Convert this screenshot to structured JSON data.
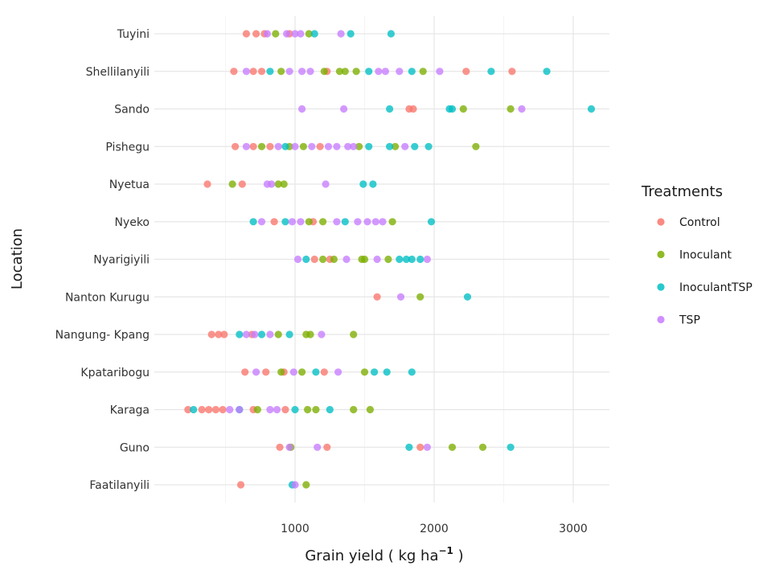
{
  "chart_data": {
    "type": "scatter",
    "xlabel": "Grain yield ( kg ha",
    "xlabel_sup": "−1",
    "xlabel_end": " )",
    "ylabel": "Location",
    "xlim": [
      200,
      3250
    ],
    "xticks": [
      1000,
      2000,
      3000
    ],
    "categories": [
      "Tuyini",
      "Shellilanyili",
      "Sando",
      "Pishegu",
      "Nyetua",
      "Nyeko",
      "Nyarigiyili",
      "Nanton Kurugu",
      "Nangung- Kpang",
      "Kpataribogu",
      "Karaga",
      "Guno",
      "Faatilanyili"
    ],
    "grid": true,
    "legend": {
      "title": "Treatments",
      "position": "right",
      "entries": [
        {
          "name": "Control",
          "color": "#F8766D"
        },
        {
          "name": "Inoculant",
          "color": "#7CAE00"
        },
        {
          "name": "InoculantTSP",
          "color": "#00BFC4"
        },
        {
          "name": "TSP",
          "color": "#C77CFF"
        }
      ]
    },
    "series": [
      {
        "name": "Control",
        "color": "#F8766D",
        "points": [
          [
            "Tuyini",
            650
          ],
          [
            "Tuyini",
            720
          ],
          [
            "Tuyini",
            780
          ],
          [
            "Tuyini",
            960
          ],
          [
            "Shellilanyili",
            560
          ],
          [
            "Shellilanyili",
            700
          ],
          [
            "Shellilanyili",
            760
          ],
          [
            "Shellilanyili",
            1230
          ],
          [
            "Shellilanyili",
            2230
          ],
          [
            "Shellilanyili",
            2560
          ],
          [
            "Sando",
            1820
          ],
          [
            "Sando",
            1850
          ],
          [
            "Pishegu",
            570
          ],
          [
            "Pishegu",
            700
          ],
          [
            "Pishegu",
            820
          ],
          [
            "Pishegu",
            1180
          ],
          [
            "Nyetua",
            370
          ],
          [
            "Nyetua",
            620
          ],
          [
            "Nyeko",
            850
          ],
          [
            "Nyeko",
            1130
          ],
          [
            "Nyarigiyili",
            1140
          ],
          [
            "Nyarigiyili",
            1250
          ],
          [
            "Nanton Kurugu",
            1590
          ],
          [
            "Nangung- Kpang",
            400
          ],
          [
            "Nangung- Kpang",
            450
          ],
          [
            "Nangung- Kpang",
            490
          ],
          [
            "Nangung- Kpang",
            690
          ],
          [
            "Kpataribogu",
            640
          ],
          [
            "Kpataribogu",
            790
          ],
          [
            "Kpataribogu",
            920
          ],
          [
            "Kpataribogu",
            1210
          ],
          [
            "Karaga",
            230
          ],
          [
            "Karaga",
            330
          ],
          [
            "Karaga",
            380
          ],
          [
            "Karaga",
            430
          ],
          [
            "Karaga",
            480
          ],
          [
            "Karaga",
            700
          ],
          [
            "Karaga",
            930
          ],
          [
            "Guno",
            890
          ],
          [
            "Guno",
            1230
          ],
          [
            "Guno",
            1900
          ],
          [
            "Faatilanyili",
            610
          ]
        ]
      },
      {
        "name": "Inoculant",
        "color": "#7CAE00",
        "points": [
          [
            "Tuyini",
            860
          ],
          [
            "Tuyini",
            1100
          ],
          [
            "Shellilanyili",
            900
          ],
          [
            "Shellilanyili",
            1210
          ],
          [
            "Shellilanyili",
            1320
          ],
          [
            "Shellilanyili",
            1360
          ],
          [
            "Shellilanyili",
            1440
          ],
          [
            "Shellilanyili",
            1920
          ],
          [
            "Sando",
            2210
          ],
          [
            "Sando",
            2550
          ],
          [
            "Pishegu",
            760
          ],
          [
            "Pishegu",
            960
          ],
          [
            "Pishegu",
            1060
          ],
          [
            "Pishegu",
            1460
          ],
          [
            "Pishegu",
            1720
          ],
          [
            "Pishegu",
            2300
          ],
          [
            "Nyetua",
            550
          ],
          [
            "Nyetua",
            880
          ],
          [
            "Nyetua",
            920
          ],
          [
            "Nyeko",
            1100
          ],
          [
            "Nyeko",
            1200
          ],
          [
            "Nyeko",
            1700
          ],
          [
            "Nyarigiyili",
            1200
          ],
          [
            "Nyarigiyili",
            1280
          ],
          [
            "Nyarigiyili",
            1480
          ],
          [
            "Nyarigiyili",
            1500
          ],
          [
            "Nyarigiyili",
            1670
          ],
          [
            "Nanton Kurugu",
            1900
          ],
          [
            "Nangung- Kpang",
            880
          ],
          [
            "Nangung- Kpang",
            1080
          ],
          [
            "Nangung- Kpang",
            1110
          ],
          [
            "Nangung- Kpang",
            1420
          ],
          [
            "Kpataribogu",
            900
          ],
          [
            "Kpataribogu",
            1050
          ],
          [
            "Kpataribogu",
            1500
          ],
          [
            "Karaga",
            730
          ],
          [
            "Karaga",
            1090
          ],
          [
            "Karaga",
            1150
          ],
          [
            "Karaga",
            1420
          ],
          [
            "Karaga",
            1540
          ],
          [
            "Guno",
            970
          ],
          [
            "Guno",
            2130
          ],
          [
            "Guno",
            2350
          ],
          [
            "Faatilanyili",
            1080
          ]
        ]
      },
      {
        "name": "InoculantTSP",
        "color": "#00BFC4",
        "points": [
          [
            "Tuyini",
            1140
          ],
          [
            "Tuyini",
            1400
          ],
          [
            "Tuyini",
            1690
          ],
          [
            "Shellilanyili",
            820
          ],
          [
            "Shellilanyili",
            1530
          ],
          [
            "Shellilanyili",
            1840
          ],
          [
            "Shellilanyili",
            2410
          ],
          [
            "Shellilanyili",
            2810
          ],
          [
            "Sando",
            1680
          ],
          [
            "Sando",
            2110
          ],
          [
            "Sando",
            2130
          ],
          [
            "Sando",
            3130
          ],
          [
            "Pishegu",
            930
          ],
          [
            "Pishegu",
            1530
          ],
          [
            "Pishegu",
            1680
          ],
          [
            "Pishegu",
            1860
          ],
          [
            "Pishegu",
            1960
          ],
          [
            "Nyetua",
            1490
          ],
          [
            "Nyetua",
            1560
          ],
          [
            "Nyeko",
            700
          ],
          [
            "Nyeko",
            930
          ],
          [
            "Nyeko",
            1360
          ],
          [
            "Nyeko",
            1980
          ],
          [
            "Nyarigiyili",
            1080
          ],
          [
            "Nyarigiyili",
            1750
          ],
          [
            "Nyarigiyili",
            1800
          ],
          [
            "Nyarigiyili",
            1840
          ],
          [
            "Nyarigiyili",
            1900
          ],
          [
            "Nanton Kurugu",
            2240
          ],
          [
            "Nangung- Kpang",
            600
          ],
          [
            "Nangung- Kpang",
            760
          ],
          [
            "Nangung- Kpang",
            960
          ],
          [
            "Kpataribogu",
            1150
          ],
          [
            "Kpataribogu",
            1570
          ],
          [
            "Kpataribogu",
            1660
          ],
          [
            "Kpataribogu",
            1840
          ],
          [
            "Karaga",
            270
          ],
          [
            "Karaga",
            600
          ],
          [
            "Karaga",
            1000
          ],
          [
            "Karaga",
            1250
          ],
          [
            "Guno",
            1820
          ],
          [
            "Guno",
            2550
          ],
          [
            "Faatilanyili",
            980
          ]
        ]
      },
      {
        "name": "TSP",
        "color": "#C77CFF",
        "points": [
          [
            "Tuyini",
            800
          ],
          [
            "Tuyini",
            940
          ],
          [
            "Tuyini",
            1000
          ],
          [
            "Tuyini",
            1040
          ],
          [
            "Tuyini",
            1330
          ],
          [
            "Shellilanyili",
            650
          ],
          [
            "Shellilanyili",
            960
          ],
          [
            "Shellilanyili",
            1050
          ],
          [
            "Shellilanyili",
            1110
          ],
          [
            "Shellilanyili",
            1600
          ],
          [
            "Shellilanyili",
            1650
          ],
          [
            "Shellilanyili",
            1750
          ],
          [
            "Shellilanyili",
            2040
          ],
          [
            "Sando",
            1050
          ],
          [
            "Sando",
            1350
          ],
          [
            "Sando",
            2630
          ],
          [
            "Pishegu",
            650
          ],
          [
            "Pishegu",
            880
          ],
          [
            "Pishegu",
            1000
          ],
          [
            "Pishegu",
            1120
          ],
          [
            "Pishegu",
            1240
          ],
          [
            "Pishegu",
            1300
          ],
          [
            "Pishegu",
            1380
          ],
          [
            "Pishegu",
            1420
          ],
          [
            "Pishegu",
            1790
          ],
          [
            "Nyetua",
            800
          ],
          [
            "Nyetua",
            830
          ],
          [
            "Nyetua",
            1220
          ],
          [
            "Nyeko",
            760
          ],
          [
            "Nyeko",
            980
          ],
          [
            "Nyeko",
            1040
          ],
          [
            "Nyeko",
            1300
          ],
          [
            "Nyeko",
            1450
          ],
          [
            "Nyeko",
            1520
          ],
          [
            "Nyeko",
            1580
          ],
          [
            "Nyeko",
            1630
          ],
          [
            "Nyarigiyili",
            1020
          ],
          [
            "Nyarigiyili",
            1370
          ],
          [
            "Nyarigiyili",
            1590
          ],
          [
            "Nyarigiyili",
            1950
          ],
          [
            "Nanton Kurugu",
            1760
          ],
          [
            "Nangung- Kpang",
            650
          ],
          [
            "Nangung- Kpang",
            710
          ],
          [
            "Nangung- Kpang",
            820
          ],
          [
            "Nangung- Kpang",
            1190
          ],
          [
            "Kpataribogu",
            720
          ],
          [
            "Kpataribogu",
            990
          ],
          [
            "Kpataribogu",
            1310
          ],
          [
            "Karaga",
            530
          ],
          [
            "Karaga",
            600
          ],
          [
            "Karaga",
            820
          ],
          [
            "Karaga",
            870
          ],
          [
            "Guno",
            960
          ],
          [
            "Guno",
            1160
          ],
          [
            "Guno",
            1950
          ],
          [
            "Faatilanyili",
            1000
          ]
        ]
      }
    ]
  }
}
